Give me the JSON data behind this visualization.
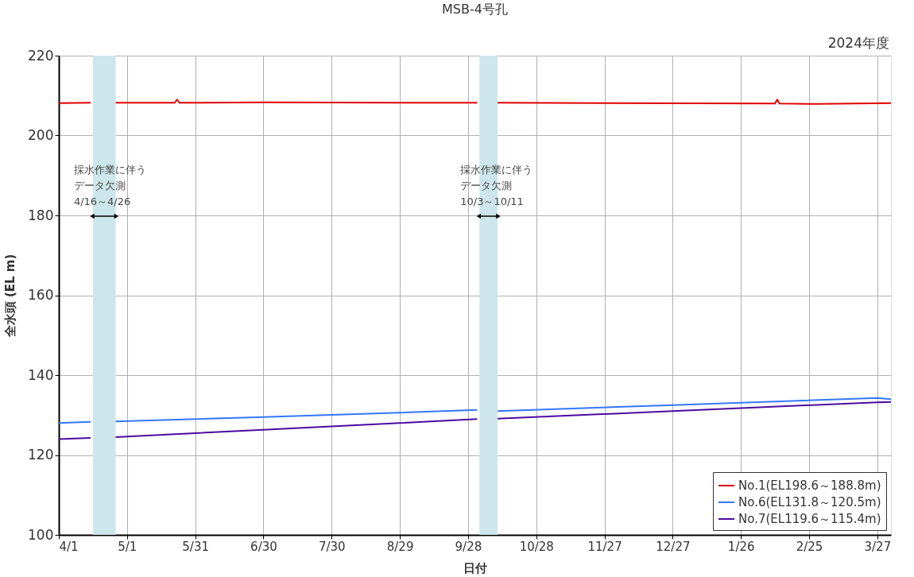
{
  "chart_data": {
    "type": "line",
    "title": "MSB-4号孔",
    "subtitle": "2024年度",
    "xlabel": "日付",
    "ylabel": "全水頭 (EL m)",
    "xlim": [
      "2024-04-01",
      "2025-04-02"
    ],
    "xticks": [
      {
        "value": "2024-04-01",
        "label": "4/1"
      },
      {
        "value": "2024-05-01",
        "label": "5/1"
      },
      {
        "value": "2024-05-31",
        "label": "5/31"
      },
      {
        "value": "2024-06-30",
        "label": "6/30"
      },
      {
        "value": "2024-07-30",
        "label": "7/30"
      },
      {
        "value": "2024-08-29",
        "label": "8/29"
      },
      {
        "value": "2024-09-28",
        "label": "9/28"
      },
      {
        "value": "2024-10-28",
        "label": "10/28"
      },
      {
        "value": "2024-11-27",
        "label": "11/27"
      },
      {
        "value": "2024-12-27",
        "label": "12/27"
      },
      {
        "value": "2025-01-26",
        "label": "1/26"
      },
      {
        "value": "2025-02-25",
        "label": "2/25"
      },
      {
        "value": "2025-03-27",
        "label": "3/27"
      }
    ],
    "ylim": [
      100,
      220
    ],
    "yticks": [
      100,
      120,
      140,
      160,
      180,
      200,
      220
    ],
    "grid": true,
    "legend": "bottom right",
    "marker": "none",
    "line_style": "solid",
    "series": [
      {
        "name": "No.1(EL198.6～188.8m)",
        "color": "#e00000",
        "x": [
          "2024-04-01",
          "2024-04-15",
          "2024-04-20",
          "2024-04-26",
          "2024-05-22",
          "2024-05-23",
          "2024-05-24",
          "2024-07-01",
          "2024-09-01",
          "2024-10-02",
          "2024-10-07",
          "2024-10-11",
          "2024-12-01",
          "2025-02-10",
          "2025-02-11",
          "2025-02-12",
          "2025-03-01",
          "2025-04-02"
        ],
        "values": [
          208.1,
          208.2,
          null,
          208.2,
          208.2,
          209.0,
          208.2,
          208.3,
          208.2,
          208.2,
          null,
          208.2,
          208.1,
          208.0,
          209.0,
          208.0,
          207.9,
          208.1
        ]
      },
      {
        "name": "No.6(EL131.8～120.5m)",
        "color": "#3377ff",
        "x": [
          "2024-04-01",
          "2024-04-15",
          "2024-04-20",
          "2024-04-26",
          "2024-06-30",
          "2024-08-29",
          "2024-10-02",
          "2024-10-07",
          "2024-10-11",
          "2024-12-27",
          "2025-03-27",
          "2025-04-02"
        ],
        "values": [
          128.0,
          128.3,
          null,
          128.4,
          129.5,
          130.6,
          131.3,
          null,
          131.0,
          132.5,
          134.3,
          134.0
        ]
      },
      {
        "name": "No.7(EL119.6～115.4m)",
        "color": "#4b0aa0",
        "x": [
          "2024-04-01",
          "2024-04-15",
          "2024-04-20",
          "2024-04-26",
          "2024-06-30",
          "2024-08-29",
          "2024-10-02",
          "2024-10-07",
          "2024-10-11",
          "2024-12-27",
          "2025-03-27",
          "2025-04-02"
        ],
        "values": [
          124.0,
          124.3,
          null,
          124.5,
          126.3,
          128.0,
          129.0,
          null,
          129.1,
          131.0,
          133.2,
          133.3
        ]
      }
    ],
    "bands": [
      {
        "axis": "x",
        "from": "2024-04-16",
        "to": "2024-04-26",
        "label": "採水作業に伴うデータ欠測\n4/16～4/26",
        "color": "#cce6ec"
      },
      {
        "axis": "x",
        "from": "2024-10-03",
        "to": "2024-10-11",
        "label": "採水作業に伴うデータ欠測\n10/3～10/11",
        "color": "#cce6ec"
      }
    ]
  }
}
